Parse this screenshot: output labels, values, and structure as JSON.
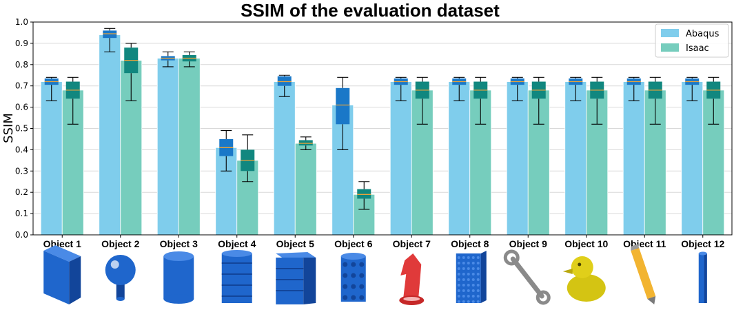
{
  "chart_data": {
    "type": "bar",
    "title": "SSIM of the evaluation dataset",
    "xlabel": "",
    "ylabel": "SSIM",
    "ylim": [
      0.0,
      1.0
    ],
    "yticks": [
      "0.0",
      "0.1",
      "0.2",
      "0.3",
      "0.4",
      "0.5",
      "0.6",
      "0.7",
      "0.8",
      "0.9",
      "1.0"
    ],
    "grid": "horizontal",
    "legend_position": "top-right",
    "categories": [
      "Object 1",
      "Object 2",
      "Object 3",
      "Object 4",
      "Object 5",
      "Object 6",
      "Object 7",
      "Object 8",
      "Object 9",
      "Object 10",
      "Object 11",
      "Object 12"
    ],
    "series": [
      {
        "name": "Abaqus",
        "bar_color": "#7fcdec",
        "box_color": "#1a78c8",
        "values": [
          0.72,
          0.94,
          0.83,
          0.41,
          0.72,
          0.61,
          0.72,
          0.72,
          0.72,
          0.72,
          0.72,
          0.72
        ],
        "box": [
          {
            "whisker_low": 0.63,
            "q1": 0.705,
            "median": 0.72,
            "q3": 0.735,
            "whisker_high": 0.74
          },
          {
            "whisker_low": 0.86,
            "q1": 0.925,
            "median": 0.945,
            "q3": 0.96,
            "whisker_high": 0.97
          },
          {
            "whisker_low": 0.79,
            "q1": 0.82,
            "median": 0.83,
            "q3": 0.84,
            "whisker_high": 0.86
          },
          {
            "whisker_low": 0.3,
            "q1": 0.37,
            "median": 0.41,
            "q3": 0.45,
            "whisker_high": 0.49
          },
          {
            "whisker_low": 0.65,
            "q1": 0.7,
            "median": 0.72,
            "q3": 0.745,
            "whisker_high": 0.75
          },
          {
            "whisker_low": 0.4,
            "q1": 0.52,
            "median": 0.61,
            "q3": 0.69,
            "whisker_high": 0.74
          },
          {
            "whisker_low": 0.63,
            "q1": 0.705,
            "median": 0.72,
            "q3": 0.735,
            "whisker_high": 0.74
          },
          {
            "whisker_low": 0.63,
            "q1": 0.705,
            "median": 0.72,
            "q3": 0.735,
            "whisker_high": 0.74
          },
          {
            "whisker_low": 0.63,
            "q1": 0.705,
            "median": 0.72,
            "q3": 0.735,
            "whisker_high": 0.74
          },
          {
            "whisker_low": 0.63,
            "q1": 0.705,
            "median": 0.72,
            "q3": 0.735,
            "whisker_high": 0.74
          },
          {
            "whisker_low": 0.63,
            "q1": 0.705,
            "median": 0.72,
            "q3": 0.735,
            "whisker_high": 0.74
          },
          {
            "whisker_low": 0.63,
            "q1": 0.705,
            "median": 0.72,
            "q3": 0.735,
            "whisker_high": 0.74
          }
        ]
      },
      {
        "name": "Isaac",
        "bar_color": "#76cdbd",
        "box_color": "#11877f",
        "values": [
          0.68,
          0.82,
          0.83,
          0.35,
          0.43,
          0.19,
          0.68,
          0.68,
          0.68,
          0.68,
          0.68,
          0.68
        ],
        "box": [
          {
            "whisker_low": 0.52,
            "q1": 0.64,
            "median": 0.68,
            "q3": 0.72,
            "whisker_high": 0.74
          },
          {
            "whisker_low": 0.63,
            "q1": 0.76,
            "median": 0.82,
            "q3": 0.88,
            "whisker_high": 0.9
          },
          {
            "whisker_low": 0.79,
            "q1": 0.815,
            "median": 0.83,
            "q3": 0.845,
            "whisker_high": 0.86
          },
          {
            "whisker_low": 0.25,
            "q1": 0.3,
            "median": 0.35,
            "q3": 0.4,
            "whisker_high": 0.47
          },
          {
            "whisker_low": 0.4,
            "q1": 0.42,
            "median": 0.43,
            "q3": 0.445,
            "whisker_high": 0.46
          },
          {
            "whisker_low": 0.12,
            "q1": 0.17,
            "median": 0.19,
            "q3": 0.215,
            "whisker_high": 0.25
          },
          {
            "whisker_low": 0.52,
            "q1": 0.64,
            "median": 0.68,
            "q3": 0.72,
            "whisker_high": 0.74
          },
          {
            "whisker_low": 0.52,
            "q1": 0.64,
            "median": 0.68,
            "q3": 0.72,
            "whisker_high": 0.74
          },
          {
            "whisker_low": 0.52,
            "q1": 0.64,
            "median": 0.68,
            "q3": 0.72,
            "whisker_high": 0.74
          },
          {
            "whisker_low": 0.52,
            "q1": 0.64,
            "median": 0.68,
            "q3": 0.72,
            "whisker_high": 0.74
          },
          {
            "whisker_low": 0.52,
            "q1": 0.64,
            "median": 0.68,
            "q3": 0.72,
            "whisker_high": 0.74
          },
          {
            "whisker_low": 0.52,
            "q1": 0.64,
            "median": 0.68,
            "q3": 0.72,
            "whisker_high": 0.74
          }
        ]
      }
    ],
    "median_color": "#e8a33a",
    "object_icons": [
      "box-icon",
      "sphere-on-post-icon",
      "cylinder-icon",
      "ribbed-drum-icon",
      "stacked-blocks-icon",
      "studded-cylinder-icon",
      "chess-knight-icon",
      "dotted-block-icon",
      "wrench-icon",
      "rubber-duck-icon",
      "pencil-icon",
      "thin-rod-icon"
    ]
  }
}
